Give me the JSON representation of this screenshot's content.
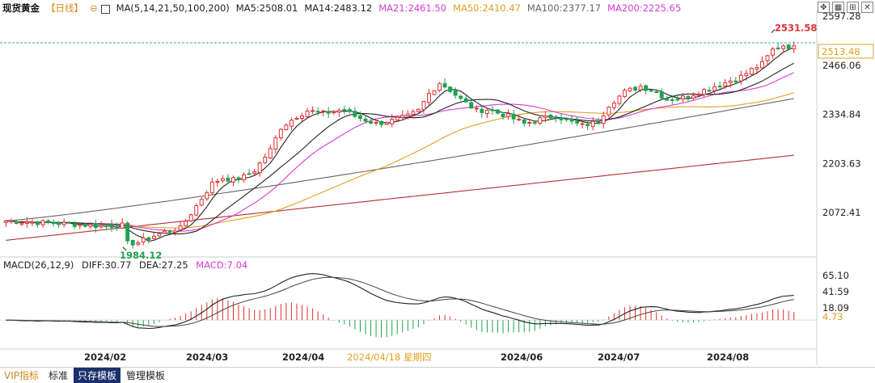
{
  "header": {
    "symbol": "现货黄金",
    "period": "【日线】",
    "cycle_icon": "⊖",
    "ma_params": "MA(5,14,21,50,100,200)",
    "ma_values": [
      {
        "label": "MA5:2508.01",
        "color": "#222222"
      },
      {
        "label": "MA14:2483.12",
        "color": "#222222"
      },
      {
        "label": "MA21:2461.50",
        "color": "#d63bd6"
      },
      {
        "label": "MA50:2410.47",
        "color": "#e0a020"
      },
      {
        "label": "MA100:2377.17",
        "color": "#666666"
      },
      {
        "label": "MA200:2225.65",
        "color": "#d63bd6"
      }
    ]
  },
  "price_axis": {
    "ticks": [
      "2597.28",
      "2466.06",
      "2334.84",
      "2203.63",
      "2072.41"
    ],
    "current_price": "2513.48",
    "high_label": "2531.58",
    "low_label": "1984.12"
  },
  "macd": {
    "title": "MACD(26,12,9)",
    "diff": "DIFF:30.77",
    "dea": "DEA:27.25",
    "macd": "MACD:7.04",
    "ticks": [
      "65.10",
      "41.59",
      "18.09",
      "4.73"
    ]
  },
  "x_axis": {
    "labels": [
      "2024/02",
      "2024/03",
      "2024/04",
      "2024/06",
      "2024/07",
      "2024/08"
    ],
    "cursor_label": "2024/04/18 星期四"
  },
  "toolbar": {
    "items": [
      "VIP指标",
      "标准",
      "只存模板",
      "管理模板"
    ]
  },
  "colors": {
    "up": "#e03030",
    "down": "#20a050",
    "ma5": "#222222",
    "ma14": "#222222",
    "ma21": "#d63bd6",
    "ma50": "#e0a020",
    "ma100": "#666666",
    "ma200": "#b03030",
    "macd_axis_highlight": "#e0a020",
    "macd_label": "#d63bd6"
  },
  "chart_data": {
    "type": "candlestick",
    "title": "",
    "ylim": [
      1960,
      2615
    ],
    "price_path": [
      [
        0,
        2050
      ],
      [
        6,
        2046
      ],
      [
        12,
        2042
      ],
      [
        18,
        2036
      ],
      [
        22,
        2038
      ],
      [
        23,
        1990
      ],
      [
        25,
        1992
      ],
      [
        28,
        2010
      ],
      [
        31,
        2025
      ],
      [
        33,
        2030
      ],
      [
        36,
        2090
      ],
      [
        39,
        2150
      ],
      [
        41,
        2165
      ],
      [
        43,
        2160
      ],
      [
        45,
        2168
      ],
      [
        47,
        2185
      ],
      [
        50,
        2240
      ],
      [
        52,
        2300
      ],
      [
        55,
        2330
      ],
      [
        57,
        2345
      ],
      [
        60,
        2338
      ],
      [
        64,
        2348
      ],
      [
        66,
        2330
      ],
      [
        70,
        2310
      ],
      [
        73,
        2318
      ],
      [
        76,
        2330
      ],
      [
        78,
        2345
      ],
      [
        80,
        2390
      ],
      [
        82,
        2420
      ],
      [
        84,
        2400
      ],
      [
        86,
        2375
      ],
      [
        89,
        2345
      ],
      [
        91,
        2348
      ],
      [
        95,
        2330
      ],
      [
        98,
        2310
      ],
      [
        101,
        2322
      ],
      [
        104,
        2332
      ],
      [
        106,
        2318
      ],
      [
        109,
        2305
      ],
      [
        112,
        2315
      ],
      [
        114,
        2360
      ],
      [
        117,
        2395
      ],
      [
        120,
        2410
      ],
      [
        123,
        2395
      ],
      [
        125,
        2375
      ],
      [
        128,
        2380
      ],
      [
        132,
        2400
      ],
      [
        136,
        2420
      ],
      [
        139,
        2436
      ],
      [
        141,
        2455
      ],
      [
        143,
        2470
      ],
      [
        145,
        2508
      ],
      [
        147,
        2520
      ],
      [
        149,
        2513
      ]
    ],
    "ma_levels_end": {
      "ma5": 2508.01,
      "ma14": 2483.12,
      "ma21": 2461.5,
      "ma50": 2410.47,
      "ma100": 2377.17,
      "ma200": 2225.65
    },
    "macd_ylim": [
      -40,
      70
    ]
  }
}
